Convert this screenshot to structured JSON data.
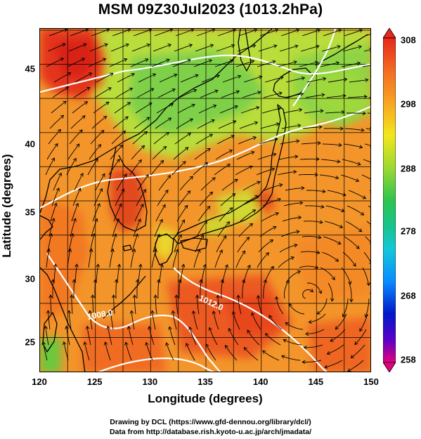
{
  "title": "MSM 09Z30Jul2023 (1013.2hPa)",
  "x_axis": {
    "label": "Longitude (degrees)",
    "range": [
      120,
      150
    ],
    "ticks": [
      "120",
      "125",
      "130",
      "135",
      "140",
      "145",
      "150"
    ]
  },
  "y_axis": {
    "label": "Latitude  (degrees)",
    "range": [
      22.4,
      47.6
    ],
    "ticks": [
      "25",
      "30",
      "35",
      "40",
      "45"
    ]
  },
  "colorbar": {
    "range": [
      258,
      308
    ],
    "ticks": [
      "308",
      "298",
      "288",
      "278",
      "268",
      "258"
    ],
    "colors": [
      "#e3007f",
      "#5a00c8",
      "#0018c8",
      "#0a8cff",
      "#13d2d8",
      "#17c46a",
      "#4cc43a",
      "#c0e52a",
      "#f3e61c",
      "#f7a521",
      "#f47021",
      "#e6281c"
    ]
  },
  "contour_labels": [
    "1008.0",
    "1012.0"
  ],
  "credits": {
    "line1": "Drawing by DCL (https://www.gfd-dennou.org/library/dcl/)",
    "line2": "Data from http://database.rish.kyoto-u.ac.jp/arch/jmadata/"
  }
}
